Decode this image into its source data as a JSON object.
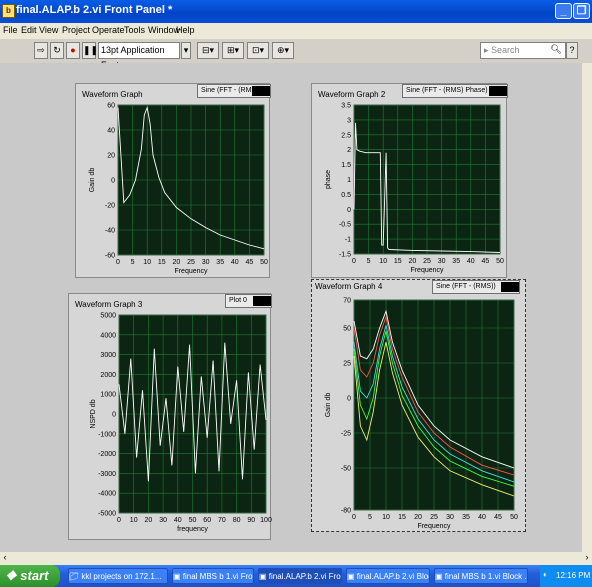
{
  "window": {
    "title": "final.ALAP.b 2.vi Front Panel *"
  },
  "menu": [
    "File",
    "Edit",
    "View",
    "Project",
    "Operate",
    "Tools",
    "Window",
    "Help"
  ],
  "toolbar": {
    "font": "13pt Application Font",
    "search_placeholder": "Search"
  },
  "colors": {
    "plot_bg": "#0c2512",
    "grid": "#1f7a36",
    "trace": "#ffffff"
  },
  "graphs": [
    {
      "title": "Waveform Graph",
      "legend": "Sine (FFT - (RMS))",
      "ylabel": "Gain db",
      "xlabel": "Frequency",
      "yticks": [
        "60",
        "40",
        "20",
        "0",
        "-20",
        "-40",
        "-60"
      ],
      "xticks": [
        "0",
        "5",
        "10",
        "15",
        "20",
        "25",
        "30",
        "35",
        "40",
        "45",
        "50"
      ]
    },
    {
      "title": "Waveform Graph 2",
      "legend": "Sine (FFT - (RMS) Phase)",
      "ylabel": "phase",
      "xlabel": "Frequency",
      "yticks": [
        "3.5",
        "3",
        "2.5",
        "2",
        "1.5",
        "1",
        "0.5",
        "0",
        "-0.5",
        "-1",
        "-1.5"
      ],
      "xticks": [
        "0",
        "5",
        "10",
        "15",
        "20",
        "25",
        "30",
        "35",
        "40",
        "45",
        "50"
      ]
    },
    {
      "title": "Waveform Graph 3",
      "legend": "Plot 0",
      "ylabel": "NSPD db",
      "xlabel": "frequency",
      "yticks": [
        "5000",
        "4000",
        "3000",
        "2000",
        "1000",
        "0",
        "-1000",
        "-2000",
        "-3000",
        "-4000",
        "-5000"
      ],
      "xticks": [
        "0",
        "10",
        "20",
        "30",
        "40",
        "50",
        "60",
        "70",
        "80",
        "90",
        "100"
      ]
    },
    {
      "title": "Waveform Graph 4",
      "legend": "Sine (FFT - (RMS))",
      "ylabel": "Gain db",
      "xlabel": "Frequency",
      "yticks": [
        "70",
        "50",
        "25",
        "0",
        "-25",
        "-50",
        "-80"
      ],
      "xticks": [
        "0",
        "5",
        "10",
        "15",
        "20",
        "25",
        "30",
        "35",
        "40",
        "45",
        "50"
      ]
    }
  ],
  "chart_data": [
    {
      "type": "line",
      "title": "Waveform Graph",
      "xlabel": "Frequency",
      "ylabel": "Gain db",
      "xlim": [
        0,
        50
      ],
      "ylim": [
        -60,
        60
      ],
      "series": [
        {
          "name": "Sine (FFT - (RMS))",
          "x": [
            0,
            2,
            4,
            6,
            8,
            9,
            10,
            11,
            12,
            14,
            16,
            20,
            25,
            30,
            35,
            40,
            45,
            50
          ],
          "y": [
            58,
            -18,
            -12,
            0,
            25,
            52,
            58,
            45,
            20,
            2,
            -10,
            -22,
            -31,
            -38,
            -44,
            -48,
            -52,
            -55
          ]
        }
      ]
    },
    {
      "type": "line",
      "title": "Waveform Graph 2",
      "xlabel": "Frequency",
      "ylabel": "phase",
      "xlim": [
        0,
        50
      ],
      "ylim": [
        -1.5,
        3.5
      ],
      "series": [
        {
          "name": "Sine (FFT - (RMS) Phase)",
          "x": [
            0,
            0.5,
            1,
            2,
            4,
            8,
            9,
            9.5,
            10,
            11,
            11.5,
            12,
            20,
            30,
            40,
            50
          ],
          "y": [
            0,
            2.9,
            2,
            1.95,
            1.9,
            1.9,
            1.9,
            -1.2,
            -1.2,
            1.9,
            -1.3,
            -1.35,
            -1.38,
            -1.4,
            -1.42,
            -1.45
          ]
        }
      ]
    },
    {
      "type": "line",
      "title": "Waveform Graph 3",
      "xlabel": "frequency",
      "ylabel": "NSPD db",
      "xlim": [
        0,
        100
      ],
      "ylim": [
        -5000,
        5000
      ],
      "series": [
        {
          "name": "Plot 0",
          "x": [
            0,
            4,
            8,
            12,
            16,
            20,
            24,
            28,
            32,
            36,
            40,
            44,
            48,
            52,
            56,
            60,
            64,
            68,
            72,
            76,
            80,
            84,
            88,
            92,
            96,
            100
          ],
          "y": [
            1500,
            -1000,
            2800,
            -2200,
            1200,
            -3400,
            3300,
            -1600,
            800,
            -2600,
            2400,
            -900,
            3500,
            -3000,
            1900,
            -1200,
            2700,
            -2900,
            3600,
            -500,
            1700,
            -3300,
            2100,
            -1800,
            2500,
            -300
          ]
        }
      ]
    },
    {
      "type": "line",
      "title": "Waveform Graph 4",
      "xlabel": "Frequency",
      "ylabel": "Gain db",
      "xlim": [
        0,
        50
      ],
      "ylim": [
        -80,
        70
      ],
      "series": [
        {
          "name": "white",
          "x": [
            0,
            2,
            4,
            6,
            8,
            10,
            12,
            15,
            20,
            25,
            30,
            40,
            50
          ],
          "y": [
            55,
            30,
            28,
            35,
            50,
            62,
            40,
            20,
            -5,
            -20,
            -30,
            -42,
            -50
          ]
        },
        {
          "name": "red",
          "x": [
            0,
            2,
            4,
            6,
            8,
            10,
            12,
            15,
            20,
            25,
            30,
            40,
            50
          ],
          "y": [
            50,
            20,
            15,
            25,
            45,
            58,
            35,
            15,
            -10,
            -25,
            -35,
            -48,
            -55
          ]
        },
        {
          "name": "cyan",
          "x": [
            0,
            2,
            4,
            6,
            8,
            10,
            12,
            15,
            20,
            25,
            30,
            40,
            50
          ],
          "y": [
            40,
            5,
            0,
            10,
            35,
            52,
            30,
            8,
            -15,
            -30,
            -40,
            -52,
            -60
          ]
        },
        {
          "name": "green",
          "x": [
            0,
            2,
            4,
            6,
            8,
            10,
            12,
            15,
            20,
            25,
            30,
            40,
            50
          ],
          "y": [
            35,
            -5,
            -15,
            0,
            30,
            48,
            25,
            2,
            -20,
            -35,
            -45,
            -56,
            -63
          ]
        },
        {
          "name": "yellow",
          "x": [
            0,
            2,
            4,
            6,
            8,
            10,
            12,
            15,
            20,
            25,
            30,
            40,
            50
          ],
          "y": [
            30,
            -20,
            -30,
            -10,
            20,
            40,
            18,
            -5,
            -28,
            -42,
            -52,
            -62,
            -70
          ]
        }
      ]
    }
  ],
  "taskbar": {
    "start": "start",
    "clock": "12:16 PM",
    "tasks": [
      "kkl projects on 172.1...",
      "final MBS b 1.vi Front...",
      "final.ALAP.b 2.vi Fro...",
      "final.ALAP.b 2.vi Bloc...",
      "final MBS b 1.vi Block ..."
    ]
  }
}
